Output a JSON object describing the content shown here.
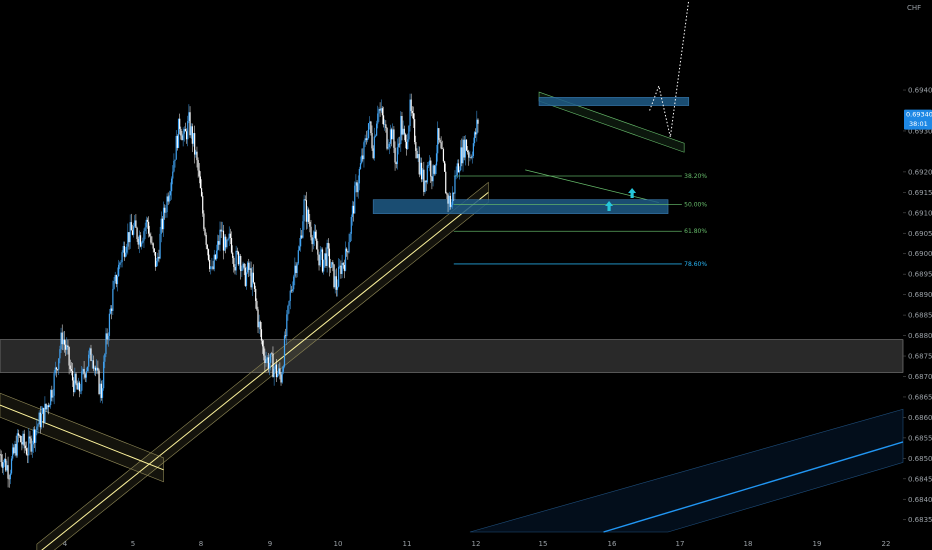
{
  "chart_data": {
    "type": "candlestick",
    "currency": "CHF",
    "y_range": [
      0.6832,
      0.6962
    ],
    "x_range": [
      3.0,
      22.6
    ],
    "y_ticks": [
      "0.69400",
      "0.69300",
      "0.69200",
      "0.69150",
      "0.69100",
      "0.69050",
      "0.69000",
      "0.68950",
      "0.68900",
      "0.68850",
      "0.68800",
      "0.68750",
      "0.68700",
      "0.68650",
      "0.68600",
      "0.68550",
      "0.68500",
      "0.68450",
      "0.68400",
      "0.68350"
    ],
    "x_ticks": [
      "4",
      "5",
      "8",
      "9",
      "10",
      "11",
      "12",
      "15",
      "16",
      "17",
      "18",
      "19",
      "22"
    ],
    "last_price": "0.69340",
    "countdown": "38:01",
    "colors": {
      "up": "#42a5f5",
      "down": "#ffffff",
      "fib": "#66bb6a",
      "fib_786": "#29b6f6",
      "zone": "#1e5a86",
      "trend_yellow": "#fff59d",
      "channel_blue": "#2196f3"
    },
    "fibonacci": [
      {
        "label": "38.20%",
        "value": 0.6919
      },
      {
        "label": "50.00%",
        "value": 0.6912
      },
      {
        "label": "61.80%",
        "value": 0.69055
      },
      {
        "label": "78.60%",
        "value": 0.68975
      }
    ],
    "zones": [
      {
        "from": 0.69362,
        "to": 0.69382,
        "x_from": 14.7,
        "x_to": 17.95
      },
      {
        "from": 0.69098,
        "to": 0.69132,
        "x_from": 11.1,
        "x_to": 17.5
      }
    ],
    "gray_zone": {
      "from": 0.6871,
      "to": 0.6879
    },
    "close_path": [
      [
        3.0,
        0.6851
      ],
      [
        3.2,
        0.6847
      ],
      [
        3.4,
        0.6855
      ],
      [
        3.6,
        0.6852
      ],
      [
        3.8,
        0.6858
      ],
      [
        4.0,
        0.6862
      ],
      [
        4.15,
        0.6868
      ],
      [
        4.25,
        0.6874
      ],
      [
        4.35,
        0.688
      ],
      [
        4.45,
        0.6876
      ],
      [
        4.55,
        0.687
      ],
      [
        4.7,
        0.6866
      ],
      [
        4.85,
        0.6872
      ],
      [
        5.0,
        0.6876
      ],
      [
        5.1,
        0.687
      ],
      [
        5.2,
        0.6866
      ],
      [
        5.3,
        0.6878
      ],
      [
        5.45,
        0.689
      ],
      [
        5.6,
        0.6898
      ],
      [
        5.75,
        0.6904
      ],
      [
        5.9,
        0.6906
      ],
      [
        6.05,
        0.6904
      ],
      [
        6.2,
        0.6908
      ],
      [
        6.3,
        0.6901
      ],
      [
        6.4,
        0.6897
      ],
      [
        6.5,
        0.6906
      ],
      [
        6.6,
        0.6912
      ],
      [
        6.7,
        0.6918
      ],
      [
        6.8,
        0.6925
      ],
      [
        6.9,
        0.6932
      ],
      [
        7.0,
        0.6928
      ],
      [
        7.1,
        0.6932
      ],
      [
        7.2,
        0.6927
      ],
      [
        7.3,
        0.692
      ],
      [
        7.4,
        0.691
      ],
      [
        7.5,
        0.6902
      ],
      [
        7.6,
        0.6895
      ],
      [
        7.7,
        0.69
      ],
      [
        7.8,
        0.6906
      ],
      [
        7.9,
        0.69
      ],
      [
        8.0,
        0.6904
      ],
      [
        8.1,
        0.6898
      ],
      [
        8.2,
        0.69
      ],
      [
        8.3,
        0.6894
      ],
      [
        8.4,
        0.6896
      ],
      [
        8.5,
        0.6892
      ],
      [
        8.6,
        0.6884
      ],
      [
        8.7,
        0.6877
      ],
      [
        8.8,
        0.6874
      ],
      [
        8.9,
        0.6873
      ],
      [
        9.0,
        0.6871
      ],
      [
        9.1,
        0.687
      ],
      [
        9.2,
        0.688
      ],
      [
        9.3,
        0.689
      ],
      [
        9.4,
        0.6897
      ],
      [
        9.5,
        0.6901
      ],
      [
        9.6,
        0.6912
      ],
      [
        9.7,
        0.6908
      ],
      [
        9.8,
        0.6904
      ],
      [
        9.9,
        0.69
      ],
      [
        10.0,
        0.6898
      ],
      [
        10.1,
        0.69
      ],
      [
        10.2,
        0.6896
      ],
      [
        10.3,
        0.6892
      ],
      [
        10.4,
        0.6897
      ],
      [
        10.5,
        0.6899
      ],
      [
        10.6,
        0.6906
      ],
      [
        10.7,
        0.6914
      ],
      [
        10.8,
        0.692
      ],
      [
        10.9,
        0.6925
      ],
      [
        11.0,
        0.6932
      ],
      [
        11.1,
        0.6926
      ],
      [
        11.2,
        0.6936
      ],
      [
        11.3,
        0.6933
      ],
      [
        11.4,
        0.6928
      ],
      [
        11.5,
        0.693
      ],
      [
        11.6,
        0.6922
      ],
      [
        11.7,
        0.6932
      ],
      [
        11.8,
        0.6926
      ],
      [
        11.9,
        0.6935
      ],
      [
        12.0,
        0.6929
      ],
      [
        12.1,
        0.6922
      ],
      [
        12.2,
        0.6917
      ],
      [
        12.3,
        0.6923
      ],
      [
        12.4,
        0.6919
      ],
      [
        12.5,
        0.6928
      ],
      [
        12.6,
        0.6923
      ],
      [
        12.7,
        0.6914
      ],
      [
        12.8,
        0.6912
      ],
      [
        12.9,
        0.692
      ],
      [
        13.0,
        0.6924
      ],
      [
        13.1,
        0.6927
      ],
      [
        13.2,
        0.6924
      ],
      [
        13.3,
        0.6928
      ],
      [
        13.4,
        0.6934
      ]
    ],
    "channels": [
      {
        "name": "upper-trend",
        "from": [
          3.8,
          0.68266
        ],
        "to": [
          13.6,
          0.6915
        ]
      },
      {
        "name": "lower-trend",
        "from": [
          3.0,
          0.6863
        ],
        "to": [
          6.5,
          0.68475
        ]
      }
    ]
  }
}
